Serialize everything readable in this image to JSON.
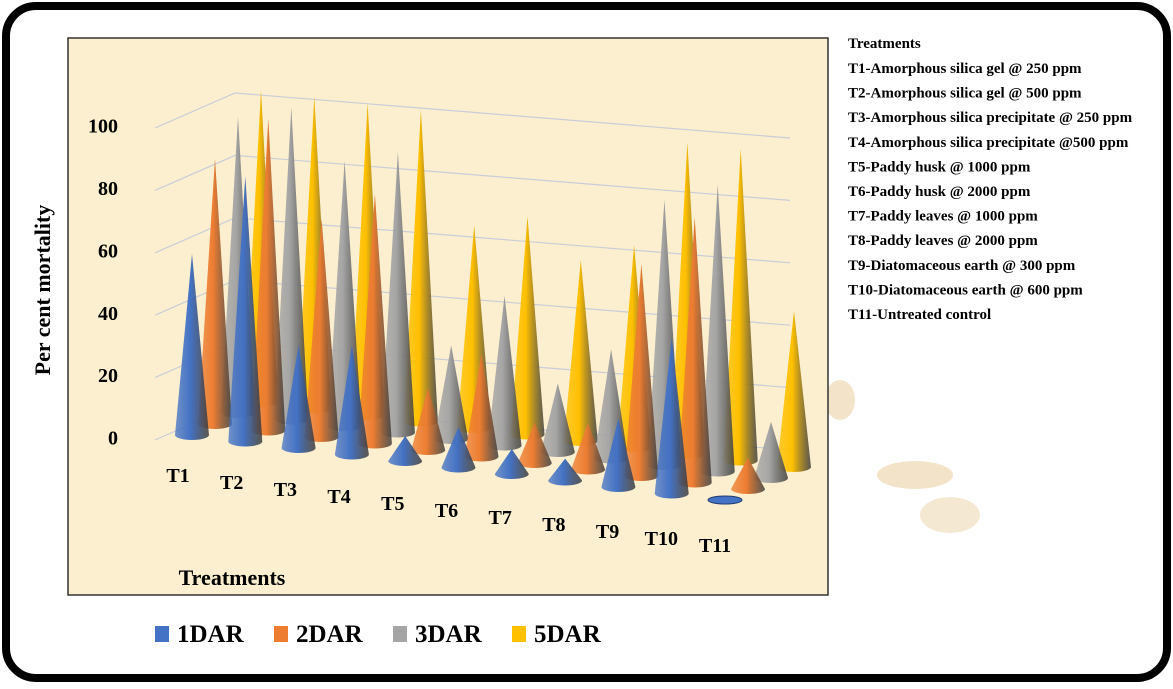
{
  "chart_data": {
    "type": "cone3d",
    "y_label": "Per cent mortality",
    "x_label": "Treatments",
    "categories": [
      "T1",
      "T2",
      "T3",
      "T4",
      "T5",
      "T6",
      "T7",
      "T8",
      "T9",
      "T10",
      "T11"
    ],
    "series": [
      {
        "name": "1DAR",
        "color": "#4472c4",
        "values": [
          58,
          85,
          33,
          35,
          8,
          13,
          8,
          7,
          22,
          50,
          0
        ]
      },
      {
        "name": "2DAR",
        "color": "#ed7d31",
        "values": [
          85,
          100,
          70,
          80,
          20,
          33,
          13,
          15,
          68,
          85,
          10
        ]
      },
      {
        "name": "3DAR",
        "color": "#a5a5a5",
        "values": [
          95,
          100,
          85,
          90,
          30,
          48,
          22,
          35,
          85,
          92,
          18
        ]
      },
      {
        "name": "5DAR",
        "color": "#ffc000",
        "values": [
          100,
          100,
          100,
          100,
          65,
          70,
          58,
          65,
          100,
          100,
          50
        ]
      }
    ],
    "ylim": [
      0,
      100
    ],
    "yticks": [
      0,
      20,
      40,
      60,
      80,
      100
    ],
    "grid": true,
    "notes_title": "Treatments",
    "notes": [
      "T1-Amorphous silica gel @ 250 ppm",
      "T2-Amorphous silica gel @ 500 ppm",
      "T3-Amorphous silica precipitate @ 250 ppm",
      "T4-Amorphous silica precipitate @500 ppm",
      "T5-Paddy husk @ 1000 ppm",
      "T6-Paddy husk @ 2000 ppm",
      "T7-Paddy leaves @ 1000 ppm",
      "T8-Paddy leaves @ 2000 ppm",
      "T9-Diatomaceous earth @ 300 ppm",
      "T10-Diatomaceous earth @ 600 ppm",
      "T11-Untreated control"
    ]
  }
}
